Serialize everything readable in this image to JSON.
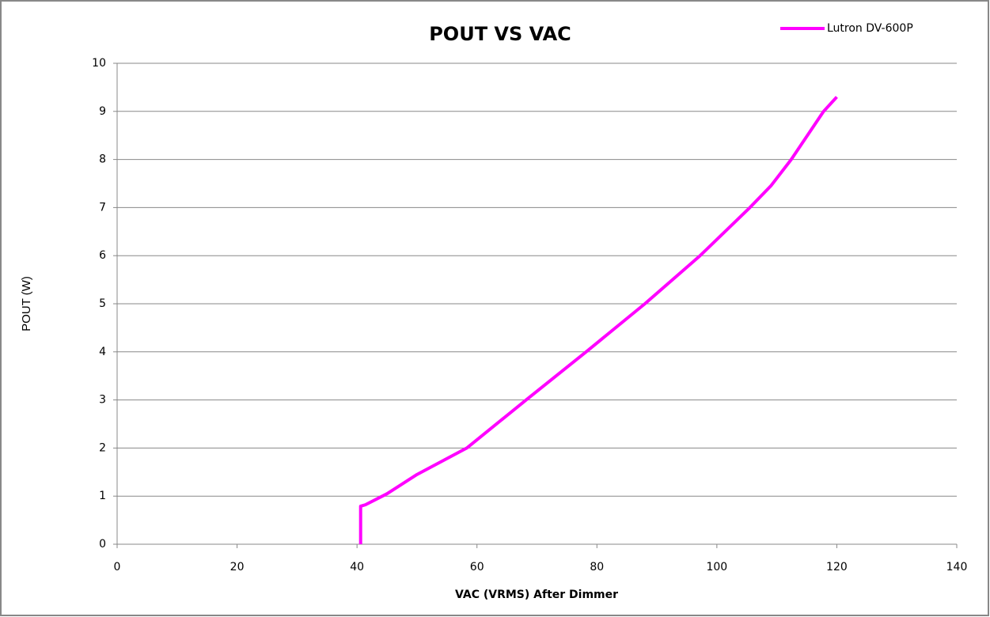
{
  "chart_data": {
    "type": "line",
    "title": "POUT VS VAC",
    "x_label": "VAC (VRMS) After Dimmer",
    "y_label": "POUT (W)",
    "x": [
      40.6,
      40.6,
      41.4,
      45,
      50,
      58.3,
      68.2,
      78.2,
      88,
      97.2,
      105.5,
      109,
      112.4,
      117.8,
      120
    ],
    "series": [
      {
        "name": "Lutron DV-600P",
        "color": "#ff00ff",
        "values": [
          0,
          0.79,
          0.82,
          1.05,
          1.45,
          2,
          3,
          4,
          5,
          6,
          7,
          7.45,
          8,
          9,
          9.3
        ]
      }
    ],
    "xlim": [
      0,
      140
    ],
    "xticks": [
      0,
      20,
      40,
      60,
      80,
      100,
      120,
      140
    ],
    "ylim": [
      0,
      10
    ],
    "yticks": [
      0,
      1,
      2,
      3,
      4,
      5,
      6,
      7,
      8,
      9,
      10
    ],
    "grid": true,
    "legend": "top-right"
  }
}
